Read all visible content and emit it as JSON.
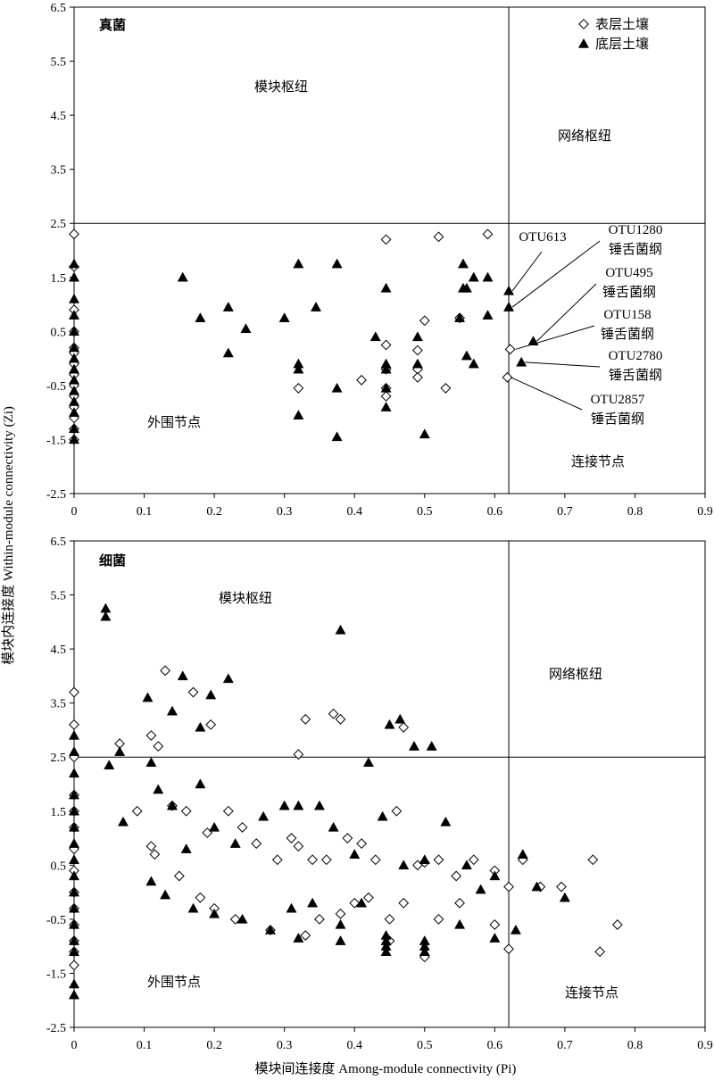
{
  "figure": {
    "y_axis_label": "模块内连接度  Within-module connectivity (Zi)",
    "x_axis_label": "模块间连接度 Among-module connectivity (Pi)",
    "legend": [
      {
        "label": "表层土壤",
        "marker": "open-diamond"
      },
      {
        "label": "底层土壤",
        "marker": "filled-triangle"
      }
    ]
  },
  "chart_data": [
    {
      "type": "scatter",
      "title": "真菌",
      "xlim": [
        0,
        0.9
      ],
      "ylim": [
        -2.5,
        6.5
      ],
      "xticks": [
        "0",
        "0.1",
        "0.2",
        "0.3",
        "0.4",
        "0.5",
        "0.6",
        "0.7",
        "0.8",
        "0.9"
      ],
      "yticks": [
        "6.5",
        "5.5",
        "4.5",
        "3.5",
        "2.5",
        "1.5",
        "0.5",
        "-0.5",
        "-1.5",
        "-2.5"
      ],
      "thresholds": {
        "pi": 0.62,
        "zi": 2.5
      },
      "legend_position": "top-right",
      "zone_labels": {
        "module_hubs": "模块枢纽",
        "network_hubs": "网络枢纽",
        "peripherals": "外围节点",
        "connectors": "连接节点"
      },
      "annotations": [
        {
          "lines": [
            "OTU613"
          ],
          "point": [
            0.62,
            1.25
          ]
        },
        {
          "lines": [
            "OTU1280",
            "锤舌菌纲"
          ],
          "point": [
            0.62,
            0.95
          ]
        },
        {
          "lines": [
            "OTU495",
            "锤舌菌纲"
          ],
          "point": [
            0.655,
            0.32
          ]
        },
        {
          "lines": [
            "OTU158",
            "锤舌菌纲"
          ],
          "point": [
            0.625,
            0.17
          ]
        },
        {
          "lines": [
            "OTU2780",
            "锤舌菌纲"
          ],
          "point": [
            0.638,
            -0.07
          ]
        },
        {
          "lines": [
            "OTU2857",
            "锤舌菌纲"
          ],
          "point": [
            0.618,
            -0.35
          ]
        }
      ],
      "series": [
        {
          "name": "表层土壤",
          "marker": "open-diamond",
          "x": [
            0,
            0,
            0,
            0,
            0,
            0,
            0,
            0,
            0,
            0,
            0,
            0,
            0,
            0,
            0.32,
            0.41,
            0.445,
            0.445,
            0.445,
            0.445,
            0.445,
            0.49,
            0.49,
            0.49,
            0.5,
            0.52,
            0.53,
            0.55,
            0.59,
            0.622,
            0.618
          ],
          "y": [
            2.3,
            1.7,
            0.9,
            0.5,
            0.2,
            0.1,
            -0.1,
            -0.3,
            -0.5,
            -0.7,
            -0.9,
            -1.1,
            -1.3,
            -1.5,
            -0.55,
            -0.4,
            2.2,
            0.25,
            -0.55,
            -0.7,
            -0.2,
            0.15,
            -0.2,
            -0.35,
            0.7,
            2.25,
            -0.55,
            0.75,
            2.3,
            0.17,
            -0.35
          ]
        },
        {
          "name": "底层土壤",
          "marker": "filled-triangle",
          "x": [
            0,
            0,
            0,
            0,
            0,
            0,
            0,
            0,
            0,
            0,
            0,
            0,
            0,
            0,
            0.155,
            0.18,
            0.22,
            0.22,
            0.245,
            0.3,
            0.32,
            0.32,
            0.32,
            0.32,
            0.345,
            0.375,
            0.375,
            0.375,
            0.43,
            0.445,
            0.445,
            0.445,
            0.445,
            0.445,
            0.49,
            0.49,
            0.5,
            0.55,
            0.555,
            0.555,
            0.56,
            0.56,
            0.57,
            0.57,
            0.59,
            0.59,
            0.62,
            0.62,
            0.638,
            0.655
          ],
          "y": [
            1.75,
            1.5,
            1.1,
            0.8,
            0.5,
            0.2,
            0,
            -0.2,
            -0.4,
            -0.6,
            -0.8,
            -1.0,
            -1.3,
            -1.5,
            1.5,
            0.75,
            0.95,
            0.1,
            0.55,
            0.75,
            1.75,
            -0.1,
            -0.2,
            -1.05,
            0.95,
            1.75,
            -0.55,
            -1.45,
            0.4,
            1.3,
            -0.1,
            -0.2,
            -0.55,
            -0.9,
            0.4,
            -0.1,
            -1.4,
            0.75,
            1.75,
            1.3,
            1.3,
            0.05,
            1.5,
            -0.1,
            1.5,
            0.8,
            1.25,
            0.95,
            -0.07,
            0.32
          ]
        }
      ]
    },
    {
      "type": "scatter",
      "title": "细菌",
      "xlim": [
        0,
        0.9
      ],
      "ylim": [
        -2.5,
        6.5
      ],
      "xticks": [
        "0",
        "0.1",
        "0.2",
        "0.3",
        "0.4",
        "0.5",
        "0.6",
        "0.7",
        "0.8",
        "0.9"
      ],
      "yticks": [
        "6.5",
        "5.5",
        "4.5",
        "3.5",
        "2.5",
        "1.5",
        "0.5",
        "-0.5",
        "-1.5",
        "-2.5"
      ],
      "thresholds": {
        "pi": 0.62,
        "zi": 2.5
      },
      "zone_labels": {
        "module_hubs": "模块枢纽",
        "network_hubs": "网络枢纽",
        "peripherals": "外围节点",
        "connectors": "连接节点"
      },
      "series": [
        {
          "name": "表层土壤",
          "marker": "open-diamond",
          "x": [
            0,
            0,
            0,
            0,
            0,
            0,
            0,
            0,
            0,
            0,
            0,
            0,
            0,
            0,
            0.065,
            0.11,
            0.12,
            0.13,
            0.17,
            0.195,
            0.32,
            0.33,
            0.37,
            0.38,
            0.47,
            0.09,
            0.11,
            0.14,
            0.16,
            0.19,
            0.22,
            0.24,
            0.26,
            0.29,
            0.31,
            0.32,
            0.34,
            0.36,
            0.39,
            0.41,
            0.43,
            0.46,
            0.49,
            0.5,
            0.52,
            0.545,
            0.57,
            0.6,
            0.62,
            0.64,
            0.665,
            0.695,
            0.74,
            0.775,
            0.75,
            0.115,
            0.15,
            0.18,
            0.2,
            0.23,
            0.28,
            0.33,
            0.38,
            0.42,
            0.45,
            0.5,
            0.55,
            0.6,
            0.62,
            0.4,
            0.47,
            0.52,
            0.45,
            0.35
          ],
          "y": [
            3.7,
            3.1,
            2.5,
            1.8,
            1.2,
            0.8,
            0.4,
            0.0,
            -0.3,
            -0.6,
            -0.9,
            -1.1,
            -1.35,
            1.5,
            2.75,
            2.9,
            2.7,
            4.1,
            3.7,
            3.1,
            2.55,
            3.2,
            3.3,
            3.2,
            3.05,
            1.5,
            0.85,
            1.6,
            1.5,
            1.1,
            1.5,
            1.2,
            0.9,
            0.6,
            1.0,
            0.85,
            0.6,
            0.6,
            1.0,
            0.9,
            0.6,
            1.5,
            0.5,
            0.55,
            0.6,
            0.3,
            0.6,
            0.4,
            0.1,
            0.6,
            0.1,
            0.1,
            0.6,
            -0.6,
            -1.1,
            0.7,
            0.3,
            -0.1,
            -0.3,
            -0.5,
            -0.7,
            -0.8,
            -0.4,
            -0.1,
            -0.5,
            -1.2,
            -0.2,
            -0.6,
            -1.05,
            -0.2,
            -0.2,
            -0.5,
            -0.9,
            -0.5
          ]
        },
        {
          "name": "底层土壤",
          "marker": "filled-triangle",
          "x": [
            0,
            0,
            0,
            0,
            0,
            0,
            0,
            0,
            0,
            0,
            0,
            0,
            0,
            0,
            0,
            0,
            0.045,
            0.045,
            0.05,
            0.065,
            0.105,
            0.14,
            0.155,
            0.18,
            0.195,
            0.22,
            0.38,
            0.42,
            0.45,
            0.465,
            0.485,
            0.51,
            0.07,
            0.11,
            0.12,
            0.14,
            0.16,
            0.18,
            0.2,
            0.23,
            0.27,
            0.3,
            0.32,
            0.35,
            0.37,
            0.4,
            0.44,
            0.47,
            0.5,
            0.53,
            0.56,
            0.58,
            0.6,
            0.64,
            0.66,
            0.7,
            0.11,
            0.13,
            0.17,
            0.2,
            0.24,
            0.28,
            0.31,
            0.34,
            0.38,
            0.41,
            0.445,
            0.445,
            0.445,
            0.445,
            0.5,
            0.5,
            0.5,
            0.55,
            0.6,
            0.63,
            0.38,
            0.32
          ],
          "y": [
            2.9,
            2.6,
            2.2,
            1.8,
            1.5,
            1.2,
            0.9,
            0.6,
            0.3,
            0.0,
            -0.3,
            -0.6,
            -0.9,
            -1.1,
            -1.7,
            -1.9,
            5.25,
            5.1,
            2.35,
            2.6,
            3.6,
            3.35,
            4.0,
            3.05,
            3.65,
            3.95,
            4.85,
            2.4,
            3.1,
            3.2,
            2.7,
            2.7,
            1.3,
            2.4,
            1.9,
            1.6,
            0.8,
            2.0,
            1.2,
            0.9,
            1.4,
            1.6,
            1.6,
            1.6,
            1.2,
            0.7,
            1.4,
            0.5,
            0.6,
            1.3,
            0.5,
            0.05,
            0.3,
            0.7,
            0.1,
            -0.1,
            0.2,
            -0.05,
            -0.3,
            -0.4,
            -0.5,
            -0.7,
            -0.3,
            -0.2,
            -0.6,
            -0.2,
            -0.8,
            -0.9,
            -1.0,
            -1.1,
            -0.9,
            -1.1,
            -1.0,
            -0.6,
            -0.85,
            -0.7,
            -0.9,
            -0.85
          ]
        }
      ]
    }
  ]
}
